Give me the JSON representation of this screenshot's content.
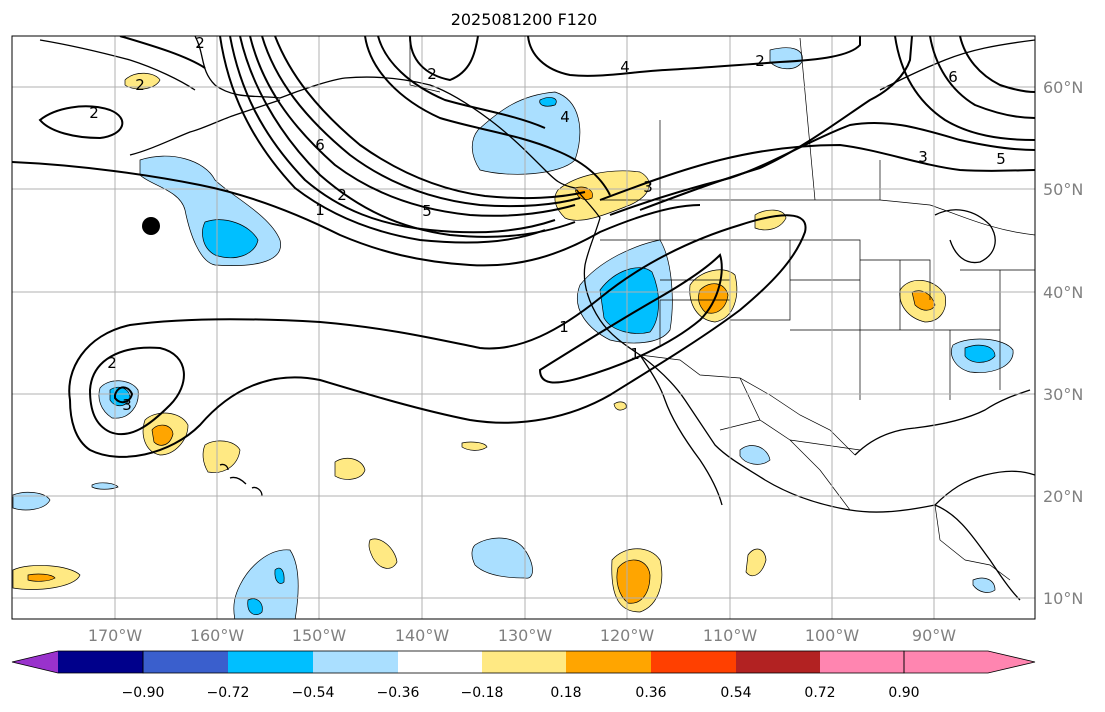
{
  "title": "2025081200 F120",
  "map": {
    "lat_ticks": [
      "10°N",
      "20°N",
      "30°N",
      "40°N",
      "50°N",
      "60°N"
    ],
    "lon_ticks": [
      "170°W",
      "160°W",
      "150°W",
      "140°W",
      "130°W",
      "120°W",
      "110°W",
      "100°W",
      "90°W"
    ]
  },
  "contour_labels": [
    "2",
    "2",
    "1",
    "2",
    "6",
    "5",
    "2",
    "4",
    "4",
    "2",
    "6",
    "3",
    "5",
    "3",
    "1",
    "1",
    "2",
    "3",
    "2"
  ],
  "colorbar": {
    "ticks": [
      "−0.90",
      "−0.72",
      "−0.54",
      "−0.36",
      "−0.18",
      "0.18",
      "0.36",
      "0.54",
      "0.72",
      "0.90"
    ],
    "colors": [
      "#9932cc",
      "#00008b",
      "#3a5fcd",
      "#00bfff",
      "#aadfff",
      "#ffffff",
      "#ffe983",
      "#ffa500",
      "#ff4000",
      "#b22222",
      "#ff85b0"
    ]
  }
}
